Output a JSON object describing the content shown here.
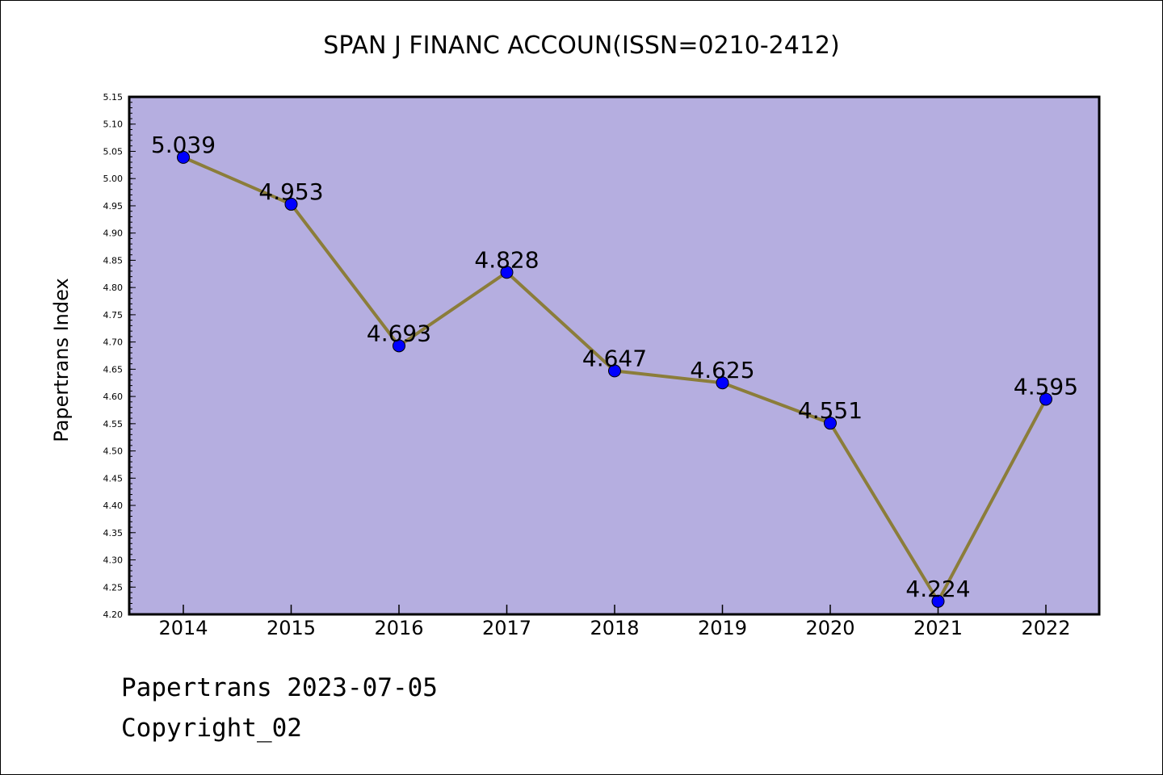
{
  "chart_data": {
    "type": "line",
    "title": "SPAN J FINANC ACCOUN(ISSN=0210-2412)",
    "ylabel": "Papertrans Index",
    "xlabel": "",
    "categories": [
      "2014",
      "2015",
      "2016",
      "2017",
      "2018",
      "2019",
      "2020",
      "2021",
      "2022"
    ],
    "values": [
      5.039,
      4.953,
      4.693,
      4.828,
      4.647,
      4.625,
      4.551,
      4.224,
      4.595
    ],
    "data_labels": [
      "5.039",
      "4.953",
      "4.693",
      "4.828",
      "4.647",
      "4.625",
      "4.551",
      "4.224",
      "4.595"
    ],
    "ylim": [
      4.2,
      5.15
    ],
    "yticks": [
      "4.20",
      "4.25",
      "4.30",
      "4.35",
      "4.40",
      "4.45",
      "4.50",
      "4.55",
      "4.60",
      "4.65",
      "4.70",
      "4.75",
      "4.80",
      "4.85",
      "4.90",
      "4.95",
      "5.00",
      "5.05",
      "5.10",
      "5.15"
    ],
    "grid": false,
    "colors": {
      "plot_background": "#b5aee0",
      "line": "#8b7d3a",
      "marker": "#0000ff"
    }
  },
  "footer": {
    "date_line": "Papertrans 2023-07-05",
    "copyright": "Copyright_02"
  }
}
